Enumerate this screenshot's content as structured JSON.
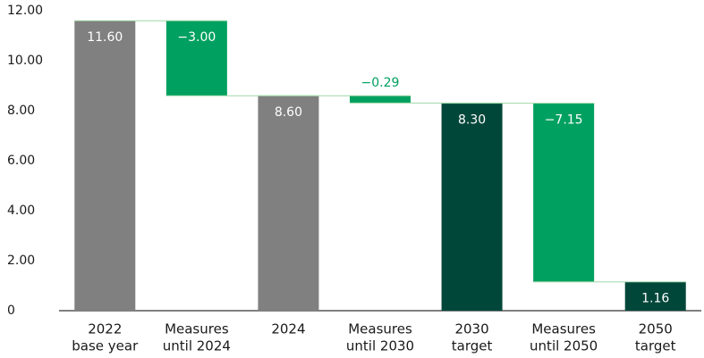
{
  "chart_data": {
    "type": "waterfall",
    "categories": [
      [
        "2022",
        "base year"
      ],
      [
        "Measures",
        "until 2024"
      ],
      [
        "2024"
      ],
      [
        "Measures",
        "until 2030"
      ],
      [
        "2030",
        "target"
      ],
      [
        "Measures",
        "until 2050"
      ],
      [
        "2050",
        "target"
      ]
    ],
    "values": [
      11.6,
      -3.0,
      8.6,
      -0.29,
      8.3,
      -7.15,
      1.16
    ],
    "value_labels": [
      "11.60",
      "−3.00",
      "8.60",
      "−0.29",
      "8.30",
      "−7.15",
      "1.16"
    ],
    "colors": [
      "#808080",
      "#00a060",
      "#808080",
      "#00a060",
      "#00473a",
      "#00a060",
      "#00473a"
    ],
    "ylim": [
      0,
      12
    ],
    "yticks": [
      0,
      {
        "value": 2,
        "label": "2.00"
      },
      {
        "value": 4,
        "label": "4.00"
      },
      {
        "value": 6,
        "label": "6.00"
      },
      {
        "value": 8,
        "label": "8.00"
      },
      {
        "value": 10,
        "label": "10.00"
      },
      {
        "value": 12,
        "label": "12.00"
      }
    ]
  }
}
